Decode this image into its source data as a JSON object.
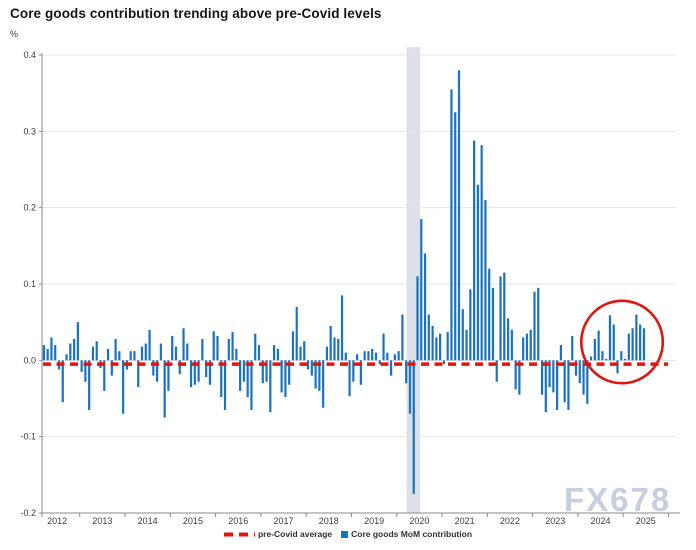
{
  "title": "Core goods contribution trending above pre-Covid levels",
  "unit_label": "%",
  "watermark": "FX678",
  "colors": {
    "bar": "#1a72c4",
    "reference_red": "#e8130b",
    "annotation_red": "#e0150e",
    "covid_band": "#dde0e8",
    "gridline": "#e4e4e4",
    "axis": "#8a8a8a",
    "text": "#3d3d3d",
    "title_text": "#151515",
    "watermark_text": "#bfcadb"
  },
  "legend": {
    "items": [
      {
        "label": "pre-Covid average",
        "swatch": "red-dash"
      },
      {
        "label": "Core goods MoM contribution",
        "swatch": "blue-square"
      }
    ]
  },
  "chart_data": {
    "type": "bar",
    "title": "Core goods contribution trending above pre-Covid levels",
    "ylabel": "%",
    "x_unit": "month",
    "start": "2012-01",
    "end": "2025-04",
    "years": [
      "2012",
      "2013",
      "2014",
      "2015",
      "2016",
      "2017",
      "2018",
      "2019",
      "2020",
      "2021",
      "2022",
      "2023",
      "2024",
      "2025"
    ],
    "y_ticks": [
      "0.4",
      "0.3",
      "0.2",
      "0.1",
      "0.0",
      "-0.1",
      "-0.2"
    ],
    "ylim": [
      -0.2,
      0.4
    ],
    "grid": "horizontal",
    "legend_position": "bottom-center",
    "series": [
      {
        "name": "Core goods MoM contribution",
        "values": [
          0.02,
          0.015,
          0.03,
          0.02,
          -0.012,
          -0.055,
          0.008,
          0.022,
          0.028,
          0.05,
          -0.015,
          -0.028,
          -0.065,
          0.018,
          0.025,
          -0.01,
          -0.04,
          0.015,
          -0.02,
          0.028,
          0.012,
          -0.07,
          -0.012,
          0.012,
          0.012,
          -0.035,
          0.018,
          0.022,
          0.04,
          -0.02,
          -0.028,
          0.022,
          -0.075,
          -0.04,
          0.032,
          0.018,
          -0.018,
          0.042,
          0.022,
          -0.035,
          -0.032,
          -0.028,
          0.028,
          -0.022,
          -0.032,
          0.038,
          0.032,
          -0.048,
          -0.065,
          0.028,
          0.037,
          0.015,
          -0.04,
          -0.028,
          -0.048,
          -0.065,
          0.035,
          0.02,
          -0.03,
          -0.028,
          -0.068,
          0.02,
          0.015,
          -0.042,
          -0.048,
          -0.032,
          0.038,
          0.07,
          0.018,
          0.025,
          -0.012,
          -0.02,
          -0.037,
          -0.04,
          -0.062,
          0.018,
          0.045,
          0.03,
          0.028,
          0.085,
          0.01,
          -0.047,
          -0.028,
          0.008,
          -0.032,
          0.012,
          0.012,
          0.015,
          0.01,
          -0.005,
          0.035,
          0.01,
          -0.02,
          0.008,
          0.012,
          0.06,
          -0.03,
          -0.07,
          -0.175,
          0.11,
          0.185,
          0.14,
          0.06,
          0.045,
          0.03,
          0.035,
          -0.005,
          0.037,
          0.355,
          0.325,
          0.38,
          0.067,
          0.04,
          0.093,
          0.288,
          0.23,
          0.282,
          0.21,
          0.12,
          0.095,
          -0.028,
          0.11,
          0.115,
          0.055,
          0.04,
          -0.038,
          -0.045,
          0.03,
          0.035,
          0.04,
          0.09,
          0.095,
          -0.045,
          -0.068,
          -0.035,
          -0.042,
          -0.065,
          0.02,
          -0.055,
          -0.065,
          0.032,
          -0.02,
          -0.03,
          -0.045,
          -0.057,
          0.005,
          0.028,
          0.039,
          0.012,
          0.002,
          0.059,
          0.047,
          -0.017,
          0.012,
          0.002,
          0.035,
          0.042,
          0.06,
          0.047,
          0.042
        ]
      }
    ],
    "reference_line": {
      "name": "pre-Covid average",
      "value": -0.005,
      "style": "dashed"
    },
    "covid_band": {
      "start_month_index": 96.6,
      "end_month_index": 100.2,
      "note": "recession shading around early 2020"
    },
    "annotation_circle": {
      "center_month_index": 153.2,
      "center_value": 0.024,
      "rx_months": 10.8,
      "ry_value": 0.054,
      "note": "highlights 2024-2025 core goods contributions"
    },
    "axis_months_span": 168
  }
}
